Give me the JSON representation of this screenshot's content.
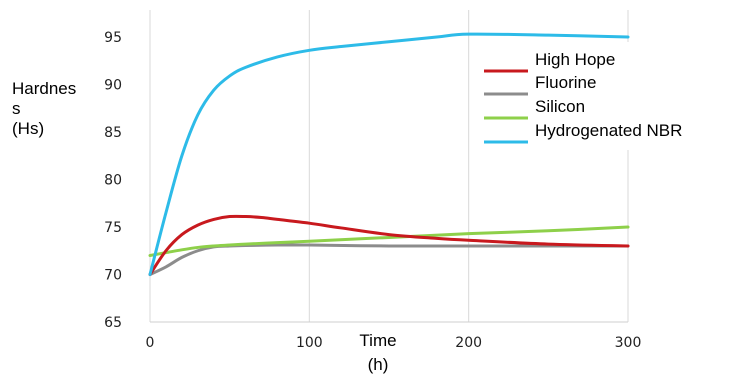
{
  "chart_data": {
    "type": "line",
    "title": "",
    "xlabel": "Time\n(h)",
    "ylabel": "Hardnes\ns\n(Hs)",
    "xlim": [
      0,
      300
    ],
    "ylim": [
      65,
      98
    ],
    "xticks": [
      0,
      100,
      200,
      300
    ],
    "yticks": [
      65,
      70,
      75,
      80,
      85,
      90,
      95
    ],
    "grid": {
      "vertical": true,
      "horizontal": false
    },
    "legend_position": "top-right",
    "series": [
      {
        "name": "High Hope",
        "color": "#c8191e",
        "x": [
          0,
          10,
          20,
          30,
          40,
          50,
          60,
          70,
          80,
          100,
          120,
          150,
          180,
          200,
          250,
          300
        ],
        "values": [
          70,
          72.5,
          74.2,
          75.2,
          75.8,
          76.1,
          76.1,
          76.0,
          75.8,
          75.4,
          74.9,
          74.2,
          73.8,
          73.6,
          73.2,
          73.0
        ]
      },
      {
        "name": "Fluorine",
        "color": "#8c8c8c",
        "x": [
          0,
          10,
          20,
          30,
          40,
          50,
          60,
          80,
          100,
          150,
          200,
          250,
          300
        ],
        "values": [
          70,
          70.8,
          71.8,
          72.5,
          72.9,
          73.0,
          73.05,
          73.1,
          73.1,
          73.0,
          73.0,
          73.0,
          73.0
        ]
      },
      {
        "name": "Silicon",
        "color": "#8ed04a",
        "x": [
          0,
          10,
          20,
          30,
          40,
          50,
          60,
          80,
          100,
          150,
          200,
          250,
          300
        ],
        "values": [
          72,
          72.3,
          72.6,
          72.85,
          73.0,
          73.1,
          73.2,
          73.35,
          73.5,
          73.9,
          74.3,
          74.6,
          75.0
        ]
      },
      {
        "name": "Hydrogenated NBR",
        "color": "#2dbbe8",
        "x": [
          0,
          10,
          20,
          30,
          40,
          50,
          60,
          80,
          100,
          120,
          150,
          180,
          200,
          250,
          300
        ],
        "values": [
          70,
          76.5,
          82.5,
          86.8,
          89.4,
          90.9,
          91.8,
          92.9,
          93.6,
          94.0,
          94.5,
          95.0,
          95.3,
          95.2,
          95.0
        ]
      }
    ]
  }
}
